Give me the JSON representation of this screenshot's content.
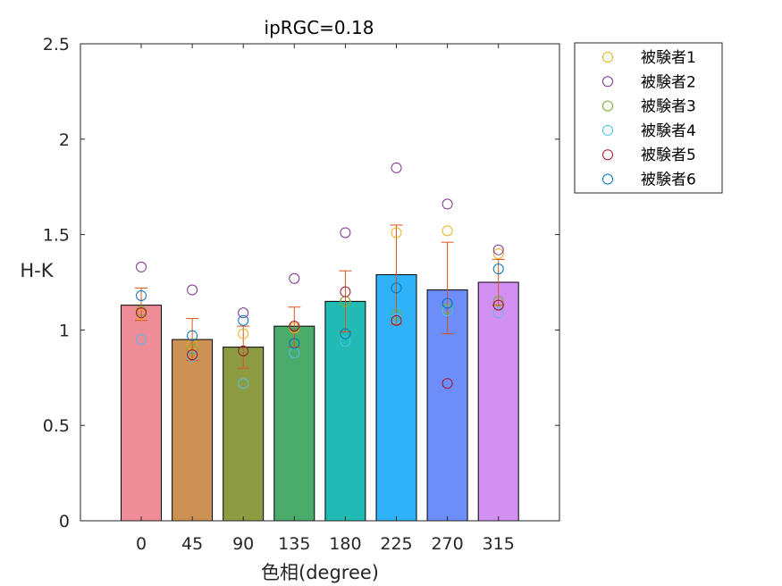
{
  "chart_data": {
    "type": "bar",
    "title": "ipRGC=0.18",
    "xlabel": "色相(degree)",
    "ylabel": "H-K",
    "categories": [
      "0",
      "45",
      "90",
      "135",
      "180",
      "225",
      "270",
      "315"
    ],
    "ylim": [
      0,
      2.5
    ],
    "yticks": [
      "0",
      "0.5",
      "1",
      "1.5",
      "2",
      "2.5"
    ],
    "grid": false,
    "legend_position": "outside-top-right",
    "bars": {
      "values": [
        1.13,
        0.95,
        0.91,
        1.02,
        1.15,
        1.29,
        1.21,
        1.25
      ],
      "error_low": [
        1.05,
        0.84,
        0.8,
        0.91,
        0.99,
        1.03,
        0.98,
        1.13
      ],
      "error_high": [
        1.22,
        1.06,
        1.02,
        1.12,
        1.31,
        1.55,
        1.46,
        1.37
      ],
      "colors": [
        "#ee8c97",
        "#ce9154",
        "#8d9c42",
        "#4aab6a",
        "#22bbb3",
        "#2fb2f7",
        "#6d8ef9",
        "#d390f3"
      ],
      "error_color": "#d95319"
    },
    "series": [
      {
        "name": "被験者1",
        "color": "#edb120",
        "values": [
          1.08,
          0.92,
          0.98,
          1.01,
          1.15,
          1.51,
          1.52,
          1.4
        ]
      },
      {
        "name": "被験者2",
        "color": "#7e2f8e",
        "values": [
          1.33,
          1.21,
          1.09,
          1.27,
          1.51,
          1.85,
          1.66,
          1.42
        ]
      },
      {
        "name": "被験者3",
        "color": "#77ac30",
        "values": [
          1.1,
          0.9,
          0.89,
          1.02,
          1.15,
          1.08,
          1.11,
          1.15
        ]
      },
      {
        "name": "被験者4",
        "color": "#4dbeee",
        "values": [
          0.95,
          0.86,
          0.72,
          0.88,
          0.94,
          1.06,
          1.1,
          1.09
        ]
      },
      {
        "name": "被験者5",
        "color": "#a2142f",
        "values": [
          1.09,
          0.87,
          0.89,
          1.02,
          1.2,
          1.05,
          0.72,
          1.13
        ]
      },
      {
        "name": "被験者6",
        "color": "#0072bd",
        "values": [
          1.18,
          0.97,
          1.05,
          0.93,
          0.98,
          1.22,
          1.14,
          1.32
        ]
      }
    ]
  }
}
